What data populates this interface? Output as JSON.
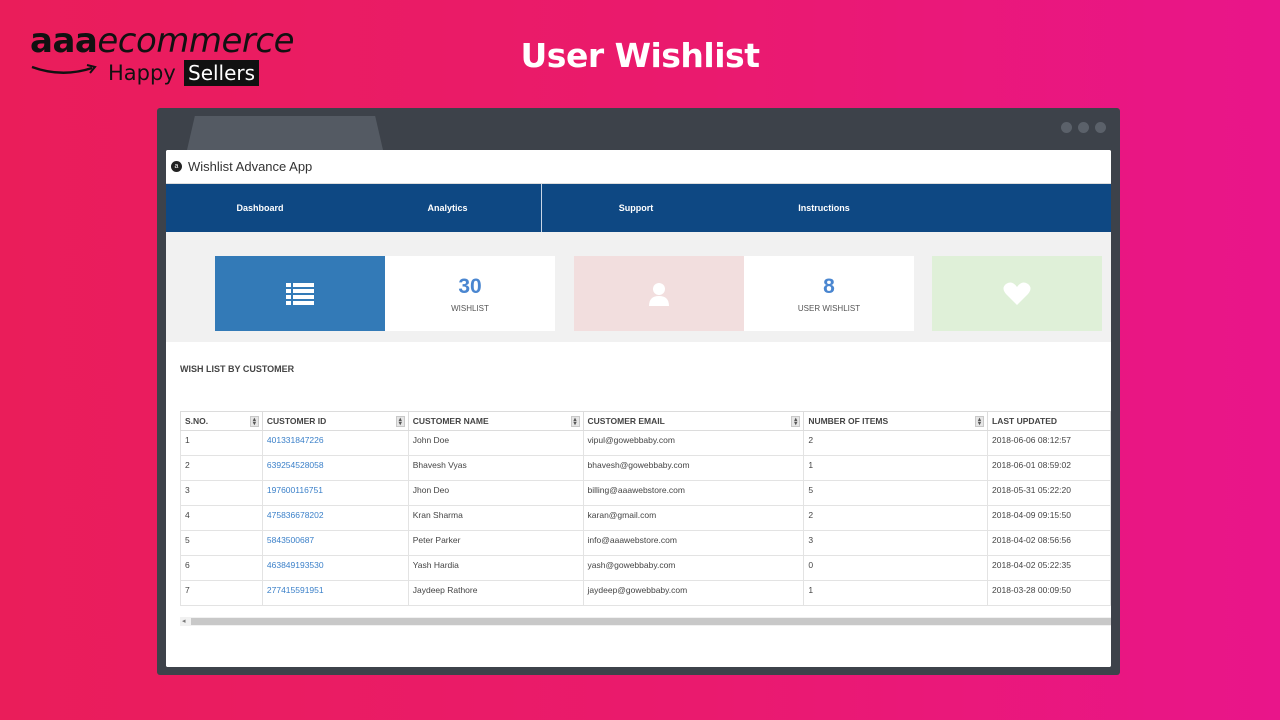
{
  "logo": {
    "prefix": "aaa",
    "suffix": "ecommerce",
    "happy": "Happy",
    "sellers": "Sellers"
  },
  "page_title": "User Wishlist",
  "app": {
    "title": "Wishlist Advance App",
    "nav": [
      "Dashboard",
      "Analytics",
      "Support",
      "Instructions"
    ]
  },
  "stats": [
    {
      "icon": "list-icon",
      "color": "#337ab7",
      "value": "30",
      "label": "WISHLIST"
    },
    {
      "icon": "user-icon",
      "color": "#f2dede",
      "value": "8",
      "label": "USER WISHLIST"
    },
    {
      "icon": "heart-icon",
      "color": "#dff0d8"
    }
  ],
  "table": {
    "title": "WISH LIST BY CUSTOMER",
    "headers": [
      "S.NO.",
      "CUSTOMER ID",
      "CUSTOMER NAME",
      "CUSTOMER EMAIL",
      "NUMBER OF ITEMS",
      "LAST UPDATED"
    ],
    "rows": [
      [
        "1",
        "401331847226",
        "John Doe",
        "vipul@gowebbaby.com",
        "2",
        "2018-06-06 08:12:57"
      ],
      [
        "2",
        "639254528058",
        "Bhavesh Vyas",
        "bhavesh@gowebbaby.com",
        "1",
        "2018-06-01 08:59:02"
      ],
      [
        "3",
        "197600116751",
        "Jhon Deo",
        "billing@aaawebstore.com",
        "5",
        "2018-05-31 05:22:20"
      ],
      [
        "4",
        "475836678202",
        "Kran Sharma",
        "karan@gmail.com",
        "2",
        "2018-04-09 09:15:50"
      ],
      [
        "5",
        "5843500687",
        "Peter Parker",
        "info@aaawebstore.com",
        "3",
        "2018-04-02 08:56:56"
      ],
      [
        "6",
        "463849193530",
        "Yash Hardia",
        "yash@gowebbaby.com",
        "0",
        "2018-04-02 05:22:35"
      ],
      [
        "7",
        "277415591951",
        "Jaydeep Rathore",
        "jaydeep@gowebbaby.com",
        "1",
        "2018-03-28 00:09:50"
      ]
    ]
  }
}
